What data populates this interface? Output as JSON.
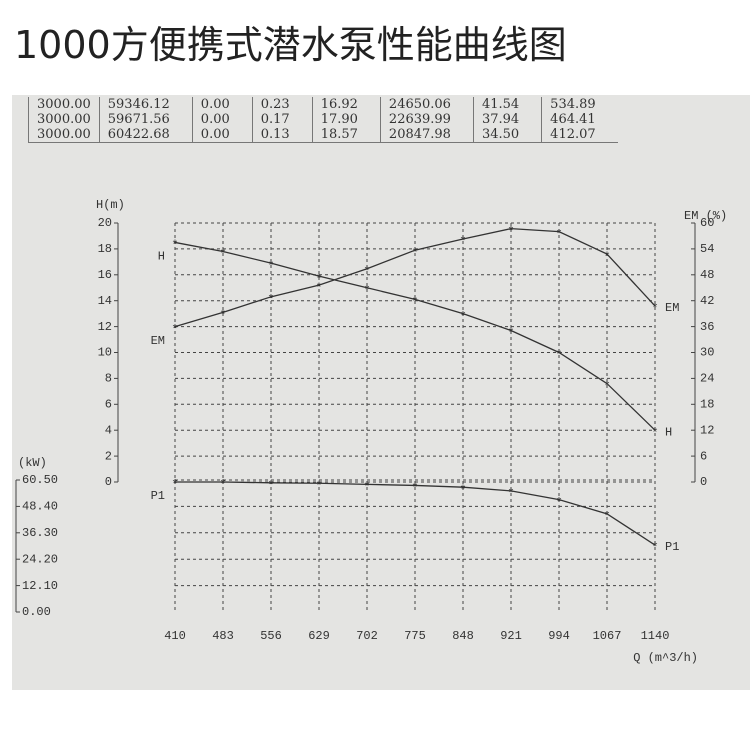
{
  "table": {
    "rows": [
      [
        "3000.00",
        "59346.12",
        "0.00",
        "0.23",
        "16.92",
        "24650.06",
        "41.54",
        "534.89"
      ],
      [
        "3000.00",
        "59671.56",
        "0.00",
        "0.17",
        "17.90",
        "22639.99",
        "37.94",
        "464.41"
      ],
      [
        "3000.00",
        "60422.68",
        "0.00",
        "0.13",
        "18.57",
        "20847.98",
        "34.50",
        "412.07"
      ]
    ]
  },
  "chart_data": {
    "type": "line",
    "title": "1000方便携式潜水泵性能曲线图",
    "x_label": "Q (m^3/h)",
    "y_label": "H(m)",
    "y2_label": "EM (%)",
    "y3_label": "(kW)",
    "x": [
      410,
      483,
      556,
      629,
      702,
      775,
      848,
      921,
      994,
      1067,
      1140
    ],
    "xlim": [
      410,
      1140
    ],
    "xticks": [
      410,
      483,
      556,
      629,
      702,
      775,
      848,
      921,
      994,
      1067,
      1140
    ],
    "ylim": [
      0,
      20
    ],
    "yticks": [
      0,
      2,
      4,
      6,
      8,
      10,
      12,
      14,
      16,
      18,
      20
    ],
    "y2lim": [
      0,
      60
    ],
    "y2ticks": [
      0,
      6,
      12,
      18,
      24,
      30,
      36,
      42,
      48,
      54,
      60
    ],
    "y3lim": [
      0,
      60.5
    ],
    "y3ticks": [
      {
        "value": 0,
        "label": "0.00"
      },
      {
        "value": 12.1,
        "label": "12.10"
      },
      {
        "value": 24.2,
        "label": "24.20"
      },
      {
        "value": 36.3,
        "label": "36.30"
      },
      {
        "value": 48.4,
        "label": "48.40"
      },
      {
        "value": 60.5,
        "label": "60.50"
      }
    ],
    "grid": true,
    "series": [
      {
        "name": "H",
        "color": "#333333",
        "values": [
          18.5,
          17.8,
          16.9,
          15.9,
          15.0,
          14.1,
          13.0,
          11.7,
          10.0,
          7.6,
          4.0
        ]
      },
      {
        "name": "EM",
        "color": "#333333",
        "axis": "y2",
        "values": [
          36.0,
          39.3,
          42.9,
          45.6,
          49.4,
          53.7,
          56.3,
          58.7,
          58.0,
          52.8,
          40.8
        ]
      },
      {
        "name": "P1",
        "color": "#333333",
        "axis": "y3",
        "values": [
          59.6,
          59.6,
          59.2,
          59.0,
          58.5,
          58.0,
          57.2,
          55.5,
          51.5,
          45.0,
          30.7
        ]
      }
    ]
  }
}
